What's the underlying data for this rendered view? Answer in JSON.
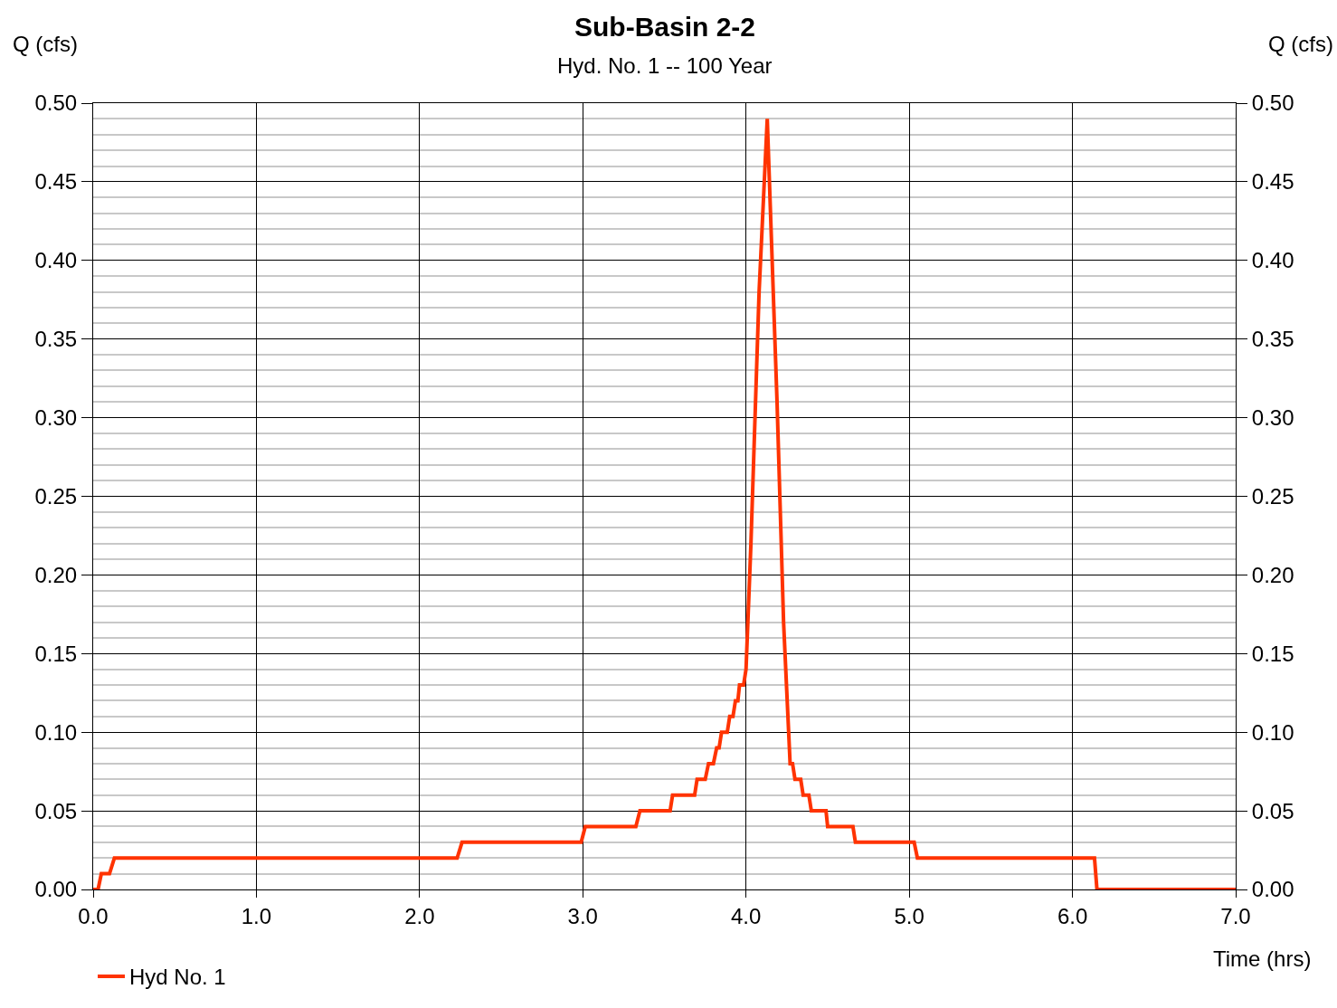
{
  "chart_data": {
    "type": "line",
    "title": "Sub-Basin 2-2",
    "subtitle": "Hyd. No. 1 -- 100 Year",
    "xlabel": "Time (hrs)",
    "ylabel": "Q (cfs)",
    "y2label": "Q (cfs)",
    "series": [
      {
        "name": "Hyd No. 1",
        "color": "#ff3300",
        "x": [
          0,
          0.03,
          0.05,
          0.1,
          0.13,
          2.23,
          2.26,
          2.99,
          3.015,
          3.325,
          3.35,
          3.535,
          3.55,
          3.685,
          3.7,
          3.75,
          3.77,
          3.8,
          3.82,
          3.835,
          3.85,
          3.885,
          3.9,
          3.92,
          3.935,
          3.95,
          3.96,
          3.985,
          4.0,
          4.03,
          4.08,
          4.13,
          4.19,
          4.23,
          4.27,
          4.285,
          4.3,
          4.335,
          4.35,
          4.385,
          4.4,
          4.49,
          4.5,
          4.655,
          4.67,
          5.03,
          5.05,
          6.135,
          6.15,
          7.0
        ],
        "values": [
          0,
          0,
          0.01,
          0.01,
          0.02,
          0.02,
          0.03,
          0.03,
          0.04,
          0.04,
          0.05,
          0.05,
          0.06,
          0.06,
          0.07,
          0.07,
          0.08,
          0.08,
          0.09,
          0.09,
          0.1,
          0.1,
          0.11,
          0.11,
          0.12,
          0.12,
          0.13,
          0.13,
          0.14,
          0.22,
          0.38,
          0.49,
          0.31,
          0.17,
          0.08,
          0.08,
          0.07,
          0.07,
          0.06,
          0.06,
          0.05,
          0.05,
          0.04,
          0.04,
          0.03,
          0.03,
          0.02,
          0.02,
          0,
          0
        ]
      }
    ],
    "xlim": [
      0,
      7
    ],
    "xticks": [
      {
        "value": 0,
        "label": "0.0"
      },
      {
        "value": 1,
        "label": "1.0"
      },
      {
        "value": 2,
        "label": "2.0"
      },
      {
        "value": 3,
        "label": "3.0"
      },
      {
        "value": 4,
        "label": "4.0"
      },
      {
        "value": 5,
        "label": "5.0"
      },
      {
        "value": 6,
        "label": "6.0"
      },
      {
        "value": 7,
        "label": "7.0"
      }
    ],
    "ylim": [
      0,
      0.5
    ],
    "yticks": [
      {
        "value": 0,
        "label": "0.00"
      },
      {
        "value": 0.05,
        "label": "0.05"
      },
      {
        "value": 0.1,
        "label": "0.10"
      },
      {
        "value": 0.15,
        "label": "0.15"
      },
      {
        "value": 0.2,
        "label": "0.20"
      },
      {
        "value": 0.25,
        "label": "0.25"
      },
      {
        "value": 0.3,
        "label": "0.30"
      },
      {
        "value": 0.35,
        "label": "0.35"
      },
      {
        "value": 0.4,
        "label": "0.40"
      },
      {
        "value": 0.45,
        "label": "0.45"
      },
      {
        "value": 0.5,
        "label": "0.50"
      },
      {
        "value": 0.01,
        "label": null
      },
      {
        "value": 0.02,
        "label": null
      },
      {
        "value": 0.03,
        "label": null
      },
      {
        "value": 0.04,
        "label": null
      },
      {
        "value": 0.06,
        "label": null
      },
      {
        "value": 0.07,
        "label": null
      },
      {
        "value": 0.08,
        "label": null
      },
      {
        "value": 0.09,
        "label": null
      },
      {
        "value": 0.11,
        "label": null
      },
      {
        "value": 0.12,
        "label": null
      },
      {
        "value": 0.13,
        "label": null
      },
      {
        "value": 0.14,
        "label": null
      },
      {
        "value": 0.16,
        "label": null
      },
      {
        "value": 0.17,
        "label": null
      },
      {
        "value": 0.18,
        "label": null
      },
      {
        "value": 0.19,
        "label": null
      },
      {
        "value": 0.21,
        "label": null
      },
      {
        "value": 0.22,
        "label": null
      },
      {
        "value": 0.23,
        "label": null
      },
      {
        "value": 0.24,
        "label": null
      },
      {
        "value": 0.26,
        "label": null
      },
      {
        "value": 0.27,
        "label": null
      },
      {
        "value": 0.28,
        "label": null
      },
      {
        "value": 0.29,
        "label": null
      },
      {
        "value": 0.31,
        "label": null
      },
      {
        "value": 0.32,
        "label": null
      },
      {
        "value": 0.33,
        "label": null
      },
      {
        "value": 0.34,
        "label": null
      },
      {
        "value": 0.36,
        "label": null
      },
      {
        "value": 0.37,
        "label": null
      },
      {
        "value": 0.38,
        "label": null
      },
      {
        "value": 0.39,
        "label": null
      },
      {
        "value": 0.41,
        "label": null
      },
      {
        "value": 0.42,
        "label": null
      },
      {
        "value": 0.43,
        "label": null
      },
      {
        "value": 0.44,
        "label": null
      },
      {
        "value": 0.46,
        "label": null
      },
      {
        "value": 0.47,
        "label": null
      },
      {
        "value": 0.48,
        "label": null
      },
      {
        "value": 0.49,
        "label": null
      }
    ],
    "y2lim": [
      0,
      0.5
    ],
    "y2ticks": [
      {
        "value": 0,
        "label": "0.00"
      },
      {
        "value": 0.05,
        "label": "0.05"
      },
      {
        "value": 0.1,
        "label": "0.10"
      },
      {
        "value": 0.15,
        "label": "0.15"
      },
      {
        "value": 0.2,
        "label": "0.20"
      },
      {
        "value": 0.25,
        "label": "0.25"
      },
      {
        "value": 0.3,
        "label": "0.30"
      },
      {
        "value": 0.35,
        "label": "0.35"
      },
      {
        "value": 0.4,
        "label": "0.40"
      },
      {
        "value": 0.45,
        "label": "0.45"
      },
      {
        "value": 0.5,
        "label": "0.50"
      }
    ],
    "grid": true,
    "legend": "bottom left",
    "line_style": "solid",
    "marker": "none"
  }
}
